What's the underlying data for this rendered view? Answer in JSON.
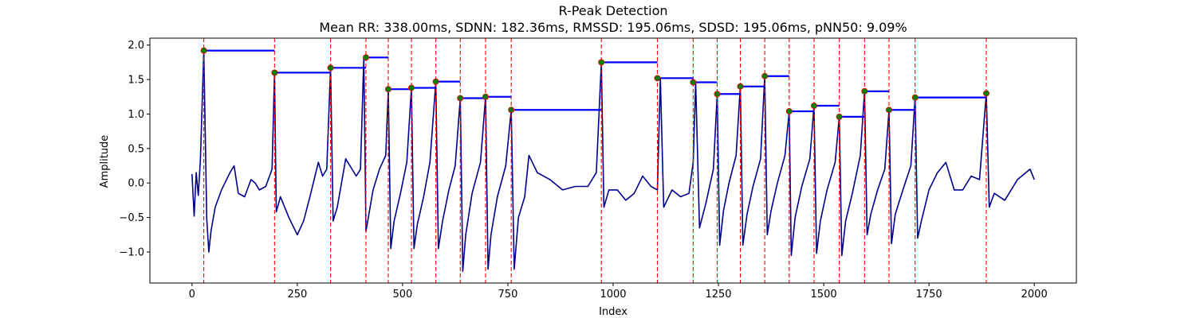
{
  "chart_data": {
    "type": "line",
    "title": "R-Peak Detection",
    "subtitle": "Mean RR: 338.00ms, SDNN: 182.36ms, RMSSD: 195.06ms, SDSD: 195.06ms, pNN50: 9.09%",
    "xlabel": "Index",
    "ylabel": "Amplitude",
    "xlim": [
      -100,
      2100
    ],
    "ylim": [
      -1.45,
      2.1
    ],
    "xticks": [
      0,
      250,
      500,
      750,
      1000,
      1250,
      1500,
      1750,
      2000
    ],
    "yticks": [
      -1.0,
      -0.5,
      0.0,
      0.5,
      1.0,
      1.5,
      2.0
    ],
    "grid": false,
    "colors": {
      "signal": "#00008b",
      "peak_line": "#ff0000",
      "rr_segment": "#0000ff",
      "peak_marker": "#008000"
    },
    "signal": {
      "x": [
        0,
        5,
        10,
        15,
        20,
        28,
        35,
        40,
        45,
        55,
        70,
        90,
        100,
        110,
        125,
        140,
        150,
        160,
        175,
        190,
        196,
        200,
        210,
        230,
        250,
        265,
        280,
        300,
        310,
        320,
        329,
        335,
        345,
        355,
        365,
        375,
        390,
        400,
        408,
        413,
        420,
        430,
        445,
        460,
        466,
        472,
        480,
        495,
        510,
        521,
        527,
        535,
        550,
        565,
        579,
        585,
        595,
        610,
        625,
        637,
        643,
        650,
        665,
        685,
        697,
        703,
        710,
        725,
        745,
        758,
        765,
        775,
        790,
        800,
        820,
        850,
        880,
        910,
        940,
        960,
        972,
        978,
        990,
        1010,
        1030,
        1050,
        1070,
        1090,
        1105,
        1112,
        1120,
        1140,
        1160,
        1180,
        1190,
        1196,
        1205,
        1220,
        1238,
        1247,
        1253,
        1262,
        1275,
        1292,
        1302,
        1308,
        1318,
        1332,
        1350,
        1360,
        1366,
        1375,
        1390,
        1408,
        1418,
        1423,
        1432,
        1448,
        1467,
        1477,
        1483,
        1492,
        1508,
        1527,
        1537,
        1543,
        1552,
        1568,
        1587,
        1597,
        1603,
        1612,
        1628,
        1645,
        1655,
        1661,
        1670,
        1688,
        1707,
        1717,
        1723,
        1732,
        1750,
        1770,
        1790,
        1810,
        1830,
        1850,
        1870,
        1886,
        1893,
        1905,
        1930,
        1960,
        1990,
        2000
      ],
      "y": [
        0.13,
        -0.48,
        0.15,
        -0.18,
        0.35,
        1.92,
        -0.52,
        -1.0,
        -0.7,
        -0.35,
        -0.1,
        0.15,
        0.25,
        -0.15,
        -0.2,
        0.05,
        0.0,
        -0.1,
        -0.05,
        0.2,
        1.6,
        -0.42,
        -0.2,
        -0.5,
        -0.75,
        -0.55,
        -0.2,
        0.3,
        0.1,
        0.2,
        1.67,
        -0.55,
        -0.35,
        0.0,
        0.35,
        0.25,
        0.1,
        0.2,
        1.82,
        -0.7,
        -0.45,
        -0.1,
        0.2,
        0.4,
        1.36,
        -0.95,
        -0.55,
        -0.15,
        0.3,
        1.38,
        -0.95,
        -0.6,
        -0.2,
        0.3,
        1.47,
        -0.95,
        -0.55,
        -0.1,
        0.25,
        1.23,
        -1.28,
        -0.75,
        -0.15,
        0.3,
        1.25,
        -1.25,
        -0.75,
        -0.2,
        0.25,
        1.06,
        -1.25,
        -0.5,
        -0.2,
        0.4,
        0.15,
        0.05,
        -0.1,
        -0.05,
        -0.05,
        0.15,
        1.75,
        -0.35,
        -0.1,
        -0.1,
        -0.25,
        -0.15,
        0.1,
        -0.05,
        -0.1,
        1.52,
        -0.35,
        -0.1,
        -0.2,
        -0.15,
        0.3,
        1.46,
        -0.65,
        -0.3,
        0.2,
        1.29,
        -0.9,
        -0.4,
        0.0,
        0.4,
        1.4,
        -0.9,
        -0.45,
        -0.05,
        0.35,
        1.55,
        -0.75,
        -0.4,
        0.0,
        0.4,
        1.04,
        -1.05,
        -0.5,
        -0.05,
        0.35,
        1.12,
        -1.02,
        -0.55,
        -0.1,
        0.3,
        0.96,
        -1.05,
        -0.55,
        -0.15,
        0.4,
        1.33,
        -0.75,
        -0.45,
        -0.1,
        0.2,
        1.06,
        -0.88,
        -0.45,
        -0.1,
        0.25,
        1.24,
        -0.8,
        -0.55,
        -0.1,
        0.15,
        0.3,
        -0.1,
        -0.1,
        0.1,
        0.05,
        1.3,
        -0.35,
        -0.15,
        -0.25,
        0.05,
        0.2,
        0.05
      ]
    },
    "peaks": {
      "x": [
        28,
        196,
        329,
        413,
        466,
        521,
        579,
        637,
        697,
        758,
        972,
        1105,
        1190,
        1247,
        1302,
        1360,
        1418,
        1477,
        1537,
        1597,
        1655,
        1717,
        1886
      ],
      "y": [
        1.92,
        1.6,
        1.67,
        1.82,
        1.36,
        1.38,
        1.47,
        1.23,
        1.25,
        1.06,
        1.75,
        1.52,
        1.46,
        1.29,
        1.4,
        1.55,
        1.04,
        1.12,
        0.96,
        1.33,
        1.06,
        1.24,
        1.3
      ]
    }
  }
}
